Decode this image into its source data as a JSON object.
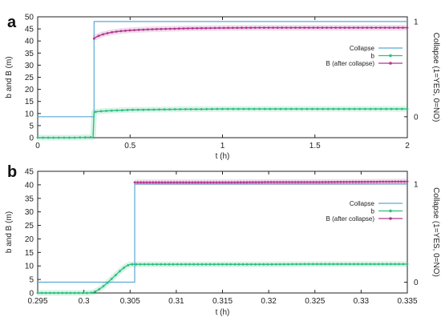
{
  "chart_data": [
    {
      "panel": "a",
      "type": "line",
      "xlabel": "t (h)",
      "ylabel": "b and B (m)",
      "y2label": "Collapse (1=YES, 0=NO)",
      "xlim": [
        0,
        2
      ],
      "ylim": [
        0,
        50
      ],
      "y2lim": [
        -0.22,
        1.05
      ],
      "xticks": [
        "0",
        "0.5",
        "1",
        "1.5",
        "2"
      ],
      "xtick_values": [
        0,
        0.5,
        1,
        1.5,
        2
      ],
      "yticks": [
        "0",
        "5",
        "10",
        "15",
        "20",
        "25",
        "30",
        "35",
        "40",
        "45",
        "50"
      ],
      "ytick_values": [
        0,
        5,
        10,
        15,
        20,
        25,
        30,
        35,
        40,
        45,
        50
      ],
      "y2ticks": [
        "0",
        "1"
      ],
      "y2tick_values": [
        0,
        1
      ],
      "legend_position": "right-middle",
      "series": [
        {
          "name": "Collapse",
          "axis": "y2",
          "color": "#5aa9d6",
          "marker": "none",
          "step": true,
          "x": [
            0,
            0.305,
            0.305,
            2
          ],
          "y": [
            0,
            0,
            1,
            1
          ]
        },
        {
          "name": "b",
          "axis": "y",
          "color": "#2fbf7f",
          "marker": "dot",
          "x": [
            0,
            0.1,
            0.2,
            0.3,
            0.305,
            0.32,
            0.35,
            0.4,
            0.5,
            0.6,
            0.7,
            0.8,
            0.9,
            1.0,
            1.2,
            1.4,
            1.6,
            1.8,
            2.0
          ],
          "y": [
            0,
            0,
            0,
            0.2,
            10.5,
            10.8,
            11.0,
            11.2,
            11.5,
            11.6,
            11.7,
            11.8,
            11.8,
            11.9,
            11.9,
            11.9,
            11.9,
            11.9,
            11.9
          ]
        },
        {
          "name": "B (after collapse)",
          "axis": "y",
          "color": "#b0388f",
          "marker": "dot",
          "x": [
            0.305,
            0.32,
            0.35,
            0.4,
            0.45,
            0.5,
            0.6,
            0.7,
            0.8,
            0.9,
            1.0,
            1.2,
            1.4,
            1.6,
            1.8,
            2.0
          ],
          "y": [
            41,
            41.8,
            42.7,
            43.6,
            44.1,
            44.4,
            44.8,
            45.0,
            45.2,
            45.3,
            45.4,
            45.5,
            45.5,
            45.5,
            45.5,
            45.5
          ]
        }
      ]
    },
    {
      "panel": "b",
      "type": "line",
      "xlabel": "t (h)",
      "ylabel": "b and B (m)",
      "y2label": "Collapse (1=YES, 0=NO)",
      "xlim": [
        0.295,
        0.335
      ],
      "ylim": [
        0,
        45
      ],
      "y2lim": [
        -0.11,
        1.13
      ],
      "xticks": [
        "0.295",
        "0.3",
        "0.305",
        "0.31",
        "0.315",
        "0.32",
        "0.325",
        "0.33",
        "0.335"
      ],
      "xtick_values": [
        0.295,
        0.3,
        0.305,
        0.31,
        0.315,
        0.32,
        0.325,
        0.33,
        0.335
      ],
      "yticks": [
        "0",
        "5",
        "10",
        "15",
        "20",
        "25",
        "30",
        "35",
        "40",
        "45"
      ],
      "ytick_values": [
        0,
        5,
        10,
        15,
        20,
        25,
        30,
        35,
        40,
        45
      ],
      "y2ticks": [
        "0",
        "1"
      ],
      "y2tick_values": [
        0,
        1
      ],
      "legend_position": "right-middle",
      "series": [
        {
          "name": "Collapse",
          "axis": "y2",
          "color": "#5aa9d6",
          "marker": "none",
          "step": true,
          "x": [
            0.295,
            0.3055,
            0.3055,
            0.335
          ],
          "y": [
            0,
            0,
            1,
            1
          ]
        },
        {
          "name": "b",
          "axis": "y",
          "color": "#2fbf7f",
          "marker": "dot",
          "x": [
            0.295,
            0.296,
            0.297,
            0.298,
            0.299,
            0.3,
            0.3005,
            0.301,
            0.3015,
            0.302,
            0.3025,
            0.303,
            0.3035,
            0.304,
            0.3045,
            0.305,
            0.306,
            0.308,
            0.31,
            0.315,
            0.32,
            0.325,
            0.33,
            0.335
          ],
          "y": [
            0,
            0,
            0,
            0,
            0,
            0,
            0,
            0.2,
            1.0,
            2.2,
            3.6,
            5.2,
            6.8,
            8.4,
            9.8,
            10.6,
            10.6,
            10.6,
            10.6,
            10.6,
            10.6,
            10.7,
            10.7,
            10.7
          ]
        },
        {
          "name": "B (after collapse)",
          "axis": "y",
          "color": "#b0388f",
          "marker": "dot",
          "x": [
            0.3055,
            0.31,
            0.315,
            0.32,
            0.325,
            0.33,
            0.335
          ],
          "y": [
            40.9,
            40.9,
            40.9,
            41.0,
            41.0,
            41.1,
            41.2
          ]
        }
      ]
    }
  ]
}
